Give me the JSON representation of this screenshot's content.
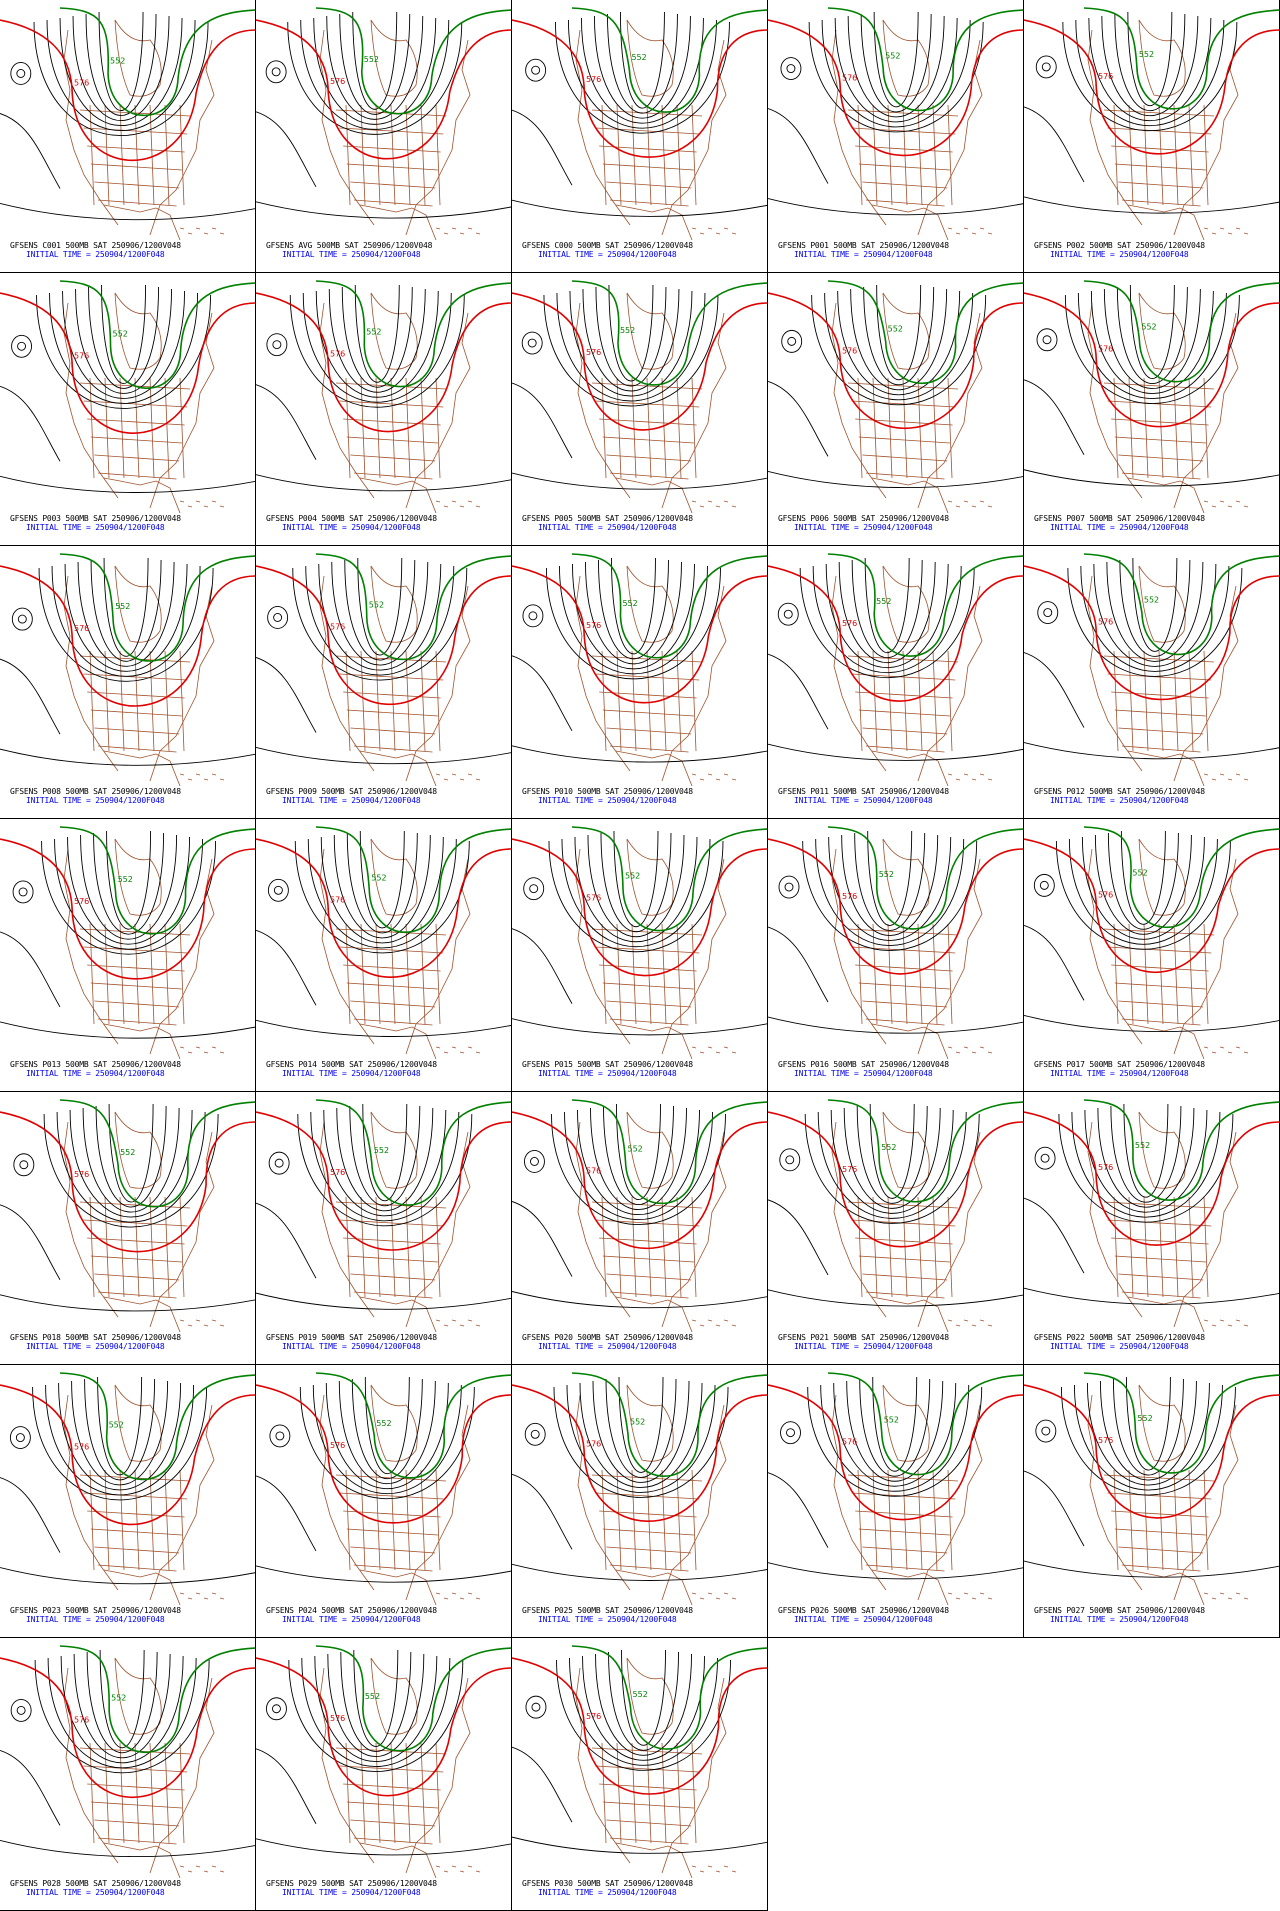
{
  "colors": {
    "contour": "#000000",
    "contour_576": "#e00000",
    "contour_552": "#008000",
    "map_borders": "#a0522d",
    "caption": "#000000",
    "initial_time": "#0000ee"
  },
  "contour_labels": {
    "red": "576",
    "green": "552"
  },
  "panels": [
    {
      "title": "GFSENS C001 500MB SAT 250906/1200V048",
      "init": "INITIAL TIME = 250904/1200F048"
    },
    {
      "title": "GFSENS AVG 500MB SAT 250906/1200V048",
      "init": "INITIAL TIME = 250904/1200F048"
    },
    {
      "title": "GFSENS C000 500MB SAT 250906/1200V048",
      "init": "INITIAL TIME = 250904/1200F048"
    },
    {
      "title": "GFSENS P001 500MB SAT 250906/1200V048",
      "init": "INITIAL TIME = 250904/1200F048"
    },
    {
      "title": "GFSENS P002 500MB SAT 250906/1200V048",
      "init": "INITIAL TIME = 250904/1200F048"
    },
    {
      "title": "GFSENS P003 500MB SAT 250906/1200V048",
      "init": "INITIAL TIME = 250904/1200F048"
    },
    {
      "title": "GFSENS P004 500MB SAT 250906/1200V048",
      "init": "INITIAL TIME = 250904/1200F048"
    },
    {
      "title": "GFSENS P005 500MB SAT 250906/1200V048",
      "init": "INITIAL TIME = 250904/1200F048"
    },
    {
      "title": "GFSENS P006 500MB SAT 250906/1200V048",
      "init": "INITIAL TIME = 250904/1200F048"
    },
    {
      "title": "GFSENS P007 500MB SAT 250906/1200V048",
      "init": "INITIAL TIME = 250904/1200F048"
    },
    {
      "title": "GFSENS P008 500MB SAT 250906/1200V048",
      "init": "INITIAL TIME = 250904/1200F048"
    },
    {
      "title": "GFSENS P009 500MB SAT 250906/1200V048",
      "init": "INITIAL TIME = 250904/1200F048"
    },
    {
      "title": "GFSENS P010 500MB SAT 250906/1200V048",
      "init": "INITIAL TIME = 250904/1200F048"
    },
    {
      "title": "GFSENS P011 500MB SAT 250906/1200V048",
      "init": "INITIAL TIME = 250904/1200F048"
    },
    {
      "title": "GFSENS P012 500MB SAT 250906/1200V048",
      "init": "INITIAL TIME = 250904/1200F048"
    },
    {
      "title": "GFSENS P013 500MB SAT 250906/1200V048",
      "init": "INITIAL TIME = 250904/1200F048"
    },
    {
      "title": "GFSENS P014 500MB SAT 250906/1200V048",
      "init": "INITIAL TIME = 250904/1200F048"
    },
    {
      "title": "GFSENS P015 500MB SAT 250906/1200V048",
      "init": "INITIAL TIME = 250904/1200F048"
    },
    {
      "title": "GFSENS P016 500MB SAT 250906/1200V048",
      "init": "INITIAL TIME = 250904/1200F048"
    },
    {
      "title": "GFSENS P017 500MB SAT 250906/1200V048",
      "init": "INITIAL TIME = 250904/1200F048"
    },
    {
      "title": "GFSENS P018 500MB SAT 250906/1200V048",
      "init": "INITIAL TIME = 250904/1200F048"
    },
    {
      "title": "GFSENS P019 500MB SAT 250906/1200V048",
      "init": "INITIAL TIME = 250904/1200F048"
    },
    {
      "title": "GFSENS P020 500MB SAT 250906/1200V048",
      "init": "INITIAL TIME = 250904/1200F048"
    },
    {
      "title": "GFSENS P021 500MB SAT 250906/1200V048",
      "init": "INITIAL TIME = 250904/1200F048"
    },
    {
      "title": "GFSENS P022 500MB SAT 250906/1200V048",
      "init": "INITIAL TIME = 250904/1200F048"
    },
    {
      "title": "GFSENS P023 500MB SAT 250906/1200V048",
      "init": "INITIAL TIME = 250904/1200F048"
    },
    {
      "title": "GFSENS P024 500MB SAT 250906/1200V048",
      "init": "INITIAL TIME = 250904/1200F048"
    },
    {
      "title": "GFSENS P025 500MB SAT 250906/1200V048",
      "init": "INITIAL TIME = 250904/1200F048"
    },
    {
      "title": "GFSENS P026 500MB SAT 250906/1200V048",
      "init": "INITIAL TIME = 250904/1200F048"
    },
    {
      "title": "GFSENS P027 500MB SAT 250906/1200V048",
      "init": "INITIAL TIME = 250904/1200F048"
    },
    {
      "title": "GFSENS P028 500MB SAT 250906/1200V048",
      "init": "INITIAL TIME = 250904/1200F048"
    },
    {
      "title": "GFSENS P029 500MB SAT 250906/1200V048",
      "init": "INITIAL TIME = 250904/1200F048"
    },
    {
      "title": "GFSENS P030 500MB SAT 250906/1200V048",
      "init": "INITIAL TIME = 250904/1200F048"
    }
  ]
}
